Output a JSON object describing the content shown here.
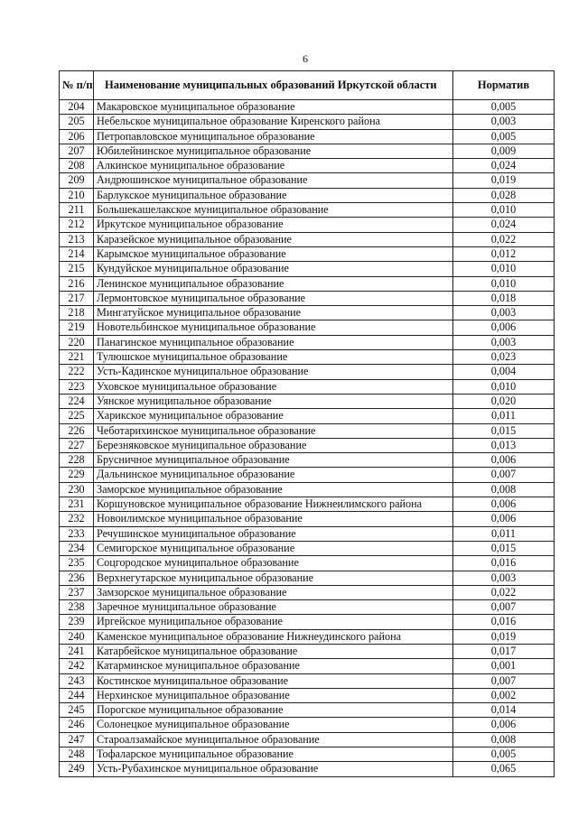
{
  "page_number": "6",
  "table": {
    "headers": [
      "№ п/п",
      "Наименование муниципальных образований Иркутской области",
      "Норматив"
    ],
    "rows": [
      [
        "204",
        "Макаровское муниципальное образование",
        "0,005"
      ],
      [
        "205",
        "Небельское муниципальное образование Киренского района",
        "0,003"
      ],
      [
        "206",
        "Петропавловское муниципальное образование",
        "0,005"
      ],
      [
        "207",
        "Юбилейнинское муниципальное образование",
        "0,009"
      ],
      [
        "208",
        "Алкинское муниципальное образование",
        "0,024"
      ],
      [
        "209",
        "Андрюшинское муниципальное образование",
        "0,019"
      ],
      [
        "210",
        "Барлукское муниципальное образование",
        "0,028"
      ],
      [
        "211",
        "Большекашелакское муниципальное образование",
        "0,010"
      ],
      [
        "212",
        "Иркутское муниципальное образование",
        "0,024"
      ],
      [
        "213",
        "Каразейское муниципальное образование",
        "0,022"
      ],
      [
        "214",
        "Карымское муниципальное образование",
        "0,012"
      ],
      [
        "215",
        "Кундуйское муниципальное образование",
        "0,010"
      ],
      [
        "216",
        "Ленинское муниципальное образование",
        "0,010"
      ],
      [
        "217",
        "Лермонтовское муниципальное образование",
        "0,018"
      ],
      [
        "218",
        "Мингатуйское муниципальное образование",
        "0,003"
      ],
      [
        "219",
        "Новотельбинское муниципальное образование",
        "0,006"
      ],
      [
        "220",
        "Панагинское муниципальное образование",
        "0,003"
      ],
      [
        "221",
        "Тулюшское муниципальное образование",
        "0,023"
      ],
      [
        "222",
        "Усть-Кадинское муниципальное образование",
        "0,004"
      ],
      [
        "223",
        "Уховское муниципальное образование",
        "0,010"
      ],
      [
        "224",
        "Уянское муниципальное образование",
        "0,020"
      ],
      [
        "225",
        "Харикское муниципальное образование",
        "0,011"
      ],
      [
        "226",
        "Чеботарихинское муниципальное образование",
        "0,015"
      ],
      [
        "227",
        "Березняковское муниципальное образование",
        "0,013"
      ],
      [
        "228",
        "Брусничное муниципальное образование",
        "0,006"
      ],
      [
        "229",
        "Дальнинское муниципальное образование",
        "0,007"
      ],
      [
        "230",
        "Заморское муниципальное образование",
        "0,008"
      ],
      [
        "231",
        "Коршуновское муниципальное образование Нижнеилимского района",
        "0,006"
      ],
      [
        "232",
        "Новоилимское муниципальное образование",
        "0,006"
      ],
      [
        "233",
        "Речушинское муниципальное образование",
        "0,011"
      ],
      [
        "234",
        "Семигорское муниципальное образование",
        "0,015"
      ],
      [
        "235",
        "Соцгородское муниципальное образование",
        "0,016"
      ],
      [
        "236",
        "Верхнегутарское муниципальное образование",
        "0,003"
      ],
      [
        "237",
        "Замзорское муниципальное образование",
        "0,022"
      ],
      [
        "238",
        "Заречное муниципальное образование",
        "0,007"
      ],
      [
        "239",
        "Иргейское муниципальное образование",
        "0,016"
      ],
      [
        "240",
        "Каменское муниципальное образование Нижнеудинского района",
        "0,019"
      ],
      [
        "241",
        "Катарбейское муниципальное образование",
        "0,017"
      ],
      [
        "242",
        "Катарминское муниципальное образование",
        "0,001"
      ],
      [
        "243",
        "Костинское муниципальное образование",
        "0,007"
      ],
      [
        "244",
        "Нерхинское муниципальное образование",
        "0,002"
      ],
      [
        "245",
        "Порогское муниципальное образование",
        "0,014"
      ],
      [
        "246",
        "Солонецкое муниципальное образование",
        "0,006"
      ],
      [
        "247",
        "Староалзамайское муниципальное образование",
        "0,008"
      ],
      [
        "248",
        "Тофаларское муниципальное образование",
        "0,005"
      ],
      [
        "249",
        "Усть-Рубахинское муниципальное образование",
        "0,065"
      ]
    ]
  }
}
